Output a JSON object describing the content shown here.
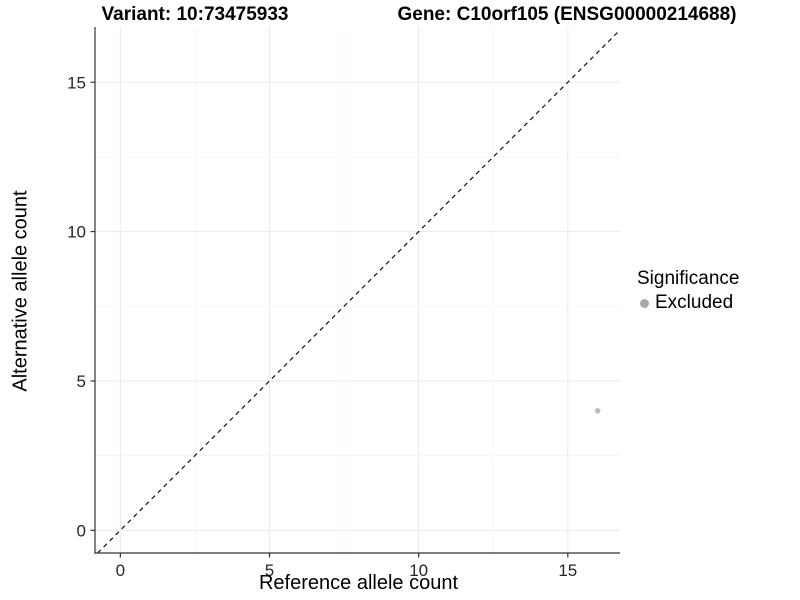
{
  "header": {
    "variant_title": "Variant: 10:73475933",
    "gene_title": "Gene: C10orf105 (ENSG00000214688)"
  },
  "chart_data": {
    "type": "scatter",
    "xlabel": "Reference allele count",
    "ylabel": "Alternative allele count",
    "x_ticks": [
      0,
      5,
      10,
      15
    ],
    "y_ticks": [
      0,
      5,
      10,
      15
    ],
    "x_minor_ticks": [
      2.5,
      7.5,
      12.5
    ],
    "y_minor_ticks": [
      2.5,
      7.5,
      12.5
    ],
    "xlim": [
      -0.85,
      16.75
    ],
    "ylim": [
      -0.76,
      16.85
    ],
    "grid": true,
    "points": [
      {
        "x": 16,
        "y": 4,
        "series": "Excluded"
      }
    ],
    "reference_line": {
      "kind": "identity",
      "equation": "y = x",
      "style": "dashed"
    },
    "legend": {
      "title": "Significance",
      "position": "right",
      "entries": [
        {
          "label": "Excluded",
          "color": "#a8a8a8"
        }
      ]
    },
    "colors": {
      "point": "#bdbdbd",
      "identity_line": "#111111",
      "grid_major": "#ebebeb",
      "grid_minor": "#f5f5f5",
      "axis_line": "#333333",
      "tick_mark": "#333333",
      "tick_label": "#262626"
    }
  }
}
